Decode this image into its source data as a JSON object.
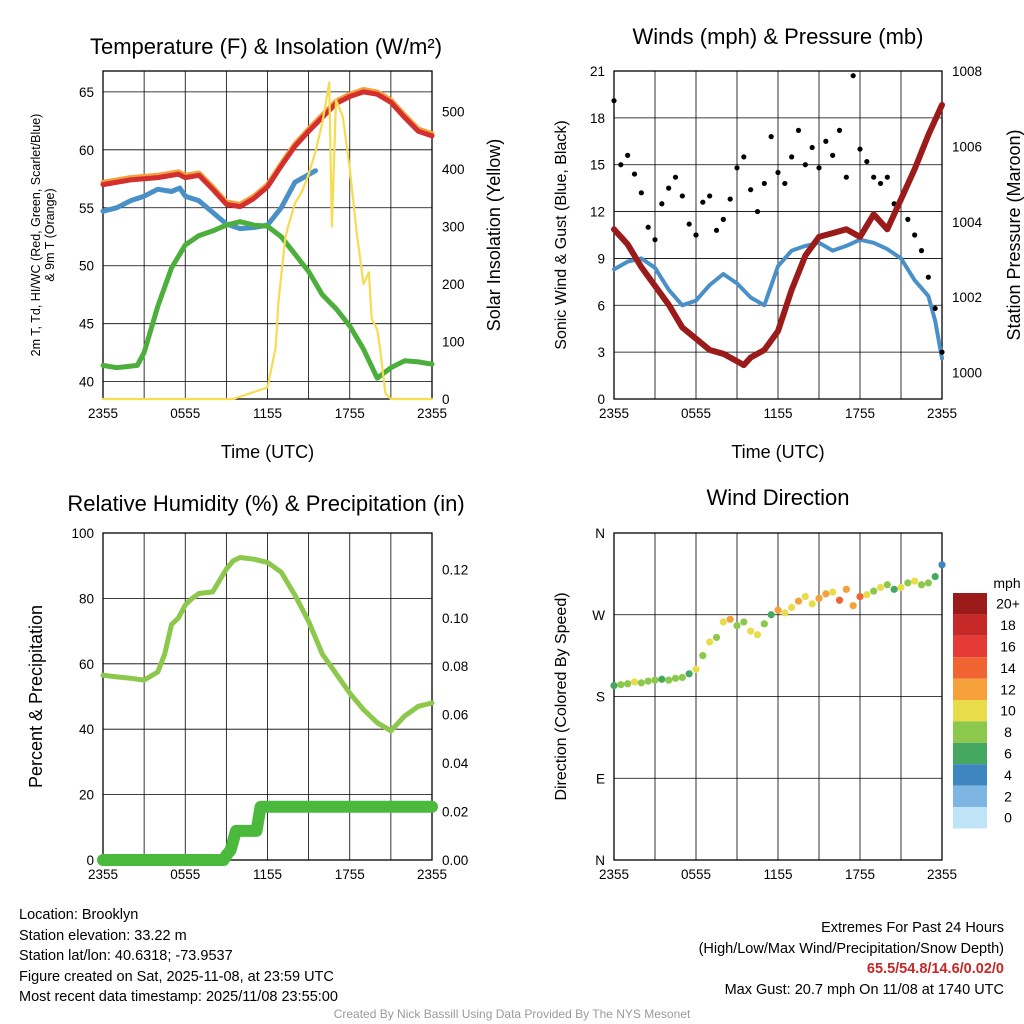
{
  "colors": {
    "temp_red": "#d32f2f",
    "temp_orange": "#f5a03a",
    "dew_green": "#4caf3c",
    "hi_scarlet": "#d32f2f",
    "wc_blue": "#4a90c8",
    "insolation": "#f5dc50",
    "wind_blue": "#4a9ad4",
    "gust_black": "#000000",
    "pressure_maroon": "#9b1b1b",
    "rh_green": "#8cc84b",
    "precip_green": "#4bba3c",
    "extreme_red": "#c62828"
  },
  "chart_data": [
    {
      "id": "temperature",
      "type": "line",
      "title": "Temperature (F) & Insolation (W/m²)",
      "xlabel": "Time (UTC)",
      "ylabel_lines": [
        "2m T, Td, HI/WC (Red, Green, Scarlet/Blue)",
        "& 9m T (Orange)"
      ],
      "y2label": "Solar Insolation (Yellow)",
      "x_ticks": [
        "2355",
        "0555",
        "1155",
        "1755",
        "2355"
      ],
      "x_range": [
        0,
        24
      ],
      "ylim": [
        38.5,
        66.8
      ],
      "y_ticks": [
        40,
        45,
        50,
        55,
        60,
        65
      ],
      "y2lim": [
        0,
        570
      ],
      "y2_ticks": [
        0,
        100,
        200,
        300,
        400,
        500
      ],
      "series": [
        {
          "name": "9m T",
          "axis": "left",
          "color": "orange",
          "x": [
            0,
            2,
            4,
            5.5,
            6,
            7,
            8,
            9,
            10,
            11,
            12,
            13,
            14,
            15,
            16,
            17,
            18,
            19,
            20,
            21,
            22,
            23,
            24
          ],
          "y": [
            57.2,
            57.6,
            57.8,
            58.1,
            57.8,
            58.0,
            56.8,
            55.5,
            55.3,
            56.0,
            57.0,
            58.8,
            60.5,
            61.8,
            63.0,
            64.2,
            64.8,
            65.2,
            65.0,
            64.3,
            63.0,
            61.8,
            61.4
          ]
        },
        {
          "name": "2m T",
          "axis": "left",
          "color": "red",
          "x": [
            0,
            2,
            4,
            5.5,
            6,
            7,
            8,
            9,
            10,
            11,
            12,
            13,
            14,
            15,
            16,
            17,
            18,
            19,
            20,
            21,
            22,
            23,
            24
          ],
          "y": [
            57.0,
            57.4,
            57.6,
            57.9,
            57.6,
            57.8,
            56.6,
            55.3,
            55.1,
            55.8,
            56.8,
            58.6,
            60.3,
            61.6,
            62.8,
            64.0,
            64.6,
            65.0,
            64.8,
            64.1,
            62.8,
            61.6,
            61.2
          ]
        },
        {
          "name": "Wind Chill",
          "axis": "left",
          "color": "blue",
          "x": [
            0,
            1,
            2,
            3,
            4,
            5,
            5.6,
            6,
            7,
            8,
            9,
            10,
            11,
            12,
            13,
            14,
            15.5
          ],
          "y": [
            54.7,
            55.0,
            55.6,
            56.0,
            56.6,
            56.4,
            56.7,
            56.0,
            55.6,
            54.6,
            53.6,
            53.2,
            53.3,
            53.5,
            55.0,
            57.2,
            58.2
          ]
        },
        {
          "name": "Dew Point",
          "axis": "left",
          "color": "green",
          "x": [
            0,
            1,
            2.5,
            3,
            4,
            5,
            6,
            7,
            8,
            9,
            10,
            11,
            12,
            13,
            14,
            15,
            16,
            17,
            18,
            19,
            20,
            21,
            22,
            23,
            24
          ],
          "y": [
            41.4,
            41.2,
            41.4,
            42.5,
            46.5,
            49.8,
            51.8,
            52.6,
            53.0,
            53.5,
            53.8,
            53.5,
            53.4,
            52.5,
            51.0,
            49.5,
            47.5,
            46.3,
            44.8,
            42.8,
            40.3,
            41.2,
            41.8,
            41.7,
            41.5
          ]
        },
        {
          "name": "Solar Insolation",
          "axis": "right",
          "color": "insolation",
          "x": [
            0,
            9.5,
            12,
            12.6,
            12.8,
            13.3,
            13.5,
            14,
            14.5,
            15,
            15.5,
            16,
            16.5,
            16.7,
            17,
            17.5,
            18,
            18.5,
            19,
            19.4,
            19.6,
            20,
            20.2,
            20.4,
            20.6,
            21,
            22,
            24
          ],
          "y": [
            0,
            0,
            20,
            90,
            170,
            280,
            300,
            340,
            360,
            390,
            430,
            480,
            550,
            300,
            520,
            490,
            400,
            290,
            200,
            220,
            140,
            120,
            90,
            50,
            10,
            0,
            0,
            0
          ]
        }
      ]
    },
    {
      "id": "winds",
      "type": "line",
      "title": "Winds (mph) & Pressure (mb)",
      "xlabel": "Time (UTC)",
      "ylabel": "Sonic Wind & Gust (Blue, Black)",
      "y2label": "Station Pressure (Maroon)",
      "x_ticks": [
        "2355",
        "0555",
        "1155",
        "1755",
        "2355"
      ],
      "x_range": [
        0,
        24
      ],
      "ylim": [
        0,
        21
      ],
      "y_ticks": [
        0,
        3,
        6,
        9,
        12,
        15,
        18,
        21
      ],
      "y2lim": [
        999.3,
        1008
      ],
      "y2_ticks": [
        1000,
        1002,
        1004,
        1006,
        1008
      ],
      "series": [
        {
          "name": "Sonic Wind",
          "axis": "left",
          "color": "blue",
          "x": [
            0,
            1,
            2,
            3,
            4,
            5,
            6,
            7,
            8,
            9,
            10,
            11,
            12,
            13,
            14,
            15,
            16,
            17,
            18,
            19,
            20,
            21,
            22,
            23,
            23.5,
            24
          ],
          "y": [
            8.3,
            8.8,
            9.0,
            8.4,
            7.0,
            6.0,
            6.3,
            7.3,
            8.0,
            7.4,
            6.5,
            6.0,
            8.5,
            9.5,
            9.8,
            10.0,
            9.5,
            9.8,
            10.2,
            10.0,
            9.6,
            9.0,
            7.6,
            6.6,
            5.0,
            2.6
          ]
        },
        {
          "name": "Gust",
          "axis": "left",
          "color": "black",
          "style": "dots",
          "x": [
            0,
            0.5,
            1,
            1.5,
            2,
            2.5,
            3,
            3.5,
            4,
            4.5,
            5,
            5.5,
            6,
            6.5,
            7,
            7.5,
            8,
            8.5,
            9,
            9.5,
            10,
            10.5,
            11,
            11.5,
            12,
            12.5,
            13,
            13.5,
            14,
            14.5,
            15,
            15.5,
            16,
            16.5,
            17,
            17.5,
            18,
            18.5,
            19,
            19.5,
            20,
            20.5,
            21,
            21.5,
            22,
            22.5,
            23,
            23.5,
            24
          ],
          "y": [
            19.1,
            15.0,
            15.6,
            14.4,
            13.2,
            11.0,
            10.2,
            12.5,
            13.5,
            14.2,
            13.0,
            11.2,
            10.5,
            12.6,
            13.0,
            10.8,
            11.5,
            12.8,
            14.8,
            15.5,
            13.4,
            12.0,
            13.8,
            16.8,
            14.5,
            13.8,
            15.5,
            17.2,
            15.0,
            16.1,
            14.8,
            16.5,
            15.6,
            17.2,
            14.2,
            20.7,
            16.0,
            15.2,
            14.2,
            13.8,
            14.2,
            12.5,
            12.8,
            11.5,
            10.5,
            9.5,
            7.8,
            5.8,
            3.0
          ]
        },
        {
          "name": "Station Pressure",
          "axis": "right",
          "color": "maroon",
          "x": [
            0,
            1,
            2,
            3,
            4,
            5,
            6,
            7,
            8,
            9,
            9.5,
            10,
            11,
            12,
            13,
            14,
            15,
            16,
            17,
            18,
            19,
            20,
            21,
            22,
            23,
            24
          ],
          "y": [
            1003.8,
            1003.4,
            1002.8,
            1002.3,
            1001.8,
            1001.2,
            1000.9,
            1000.6,
            1000.5,
            1000.3,
            1000.2,
            1000.4,
            1000.6,
            1001.1,
            1002.2,
            1003.1,
            1003.6,
            1003.7,
            1003.8,
            1003.6,
            1004.2,
            1003.8,
            1004.6,
            1005.4,
            1006.3,
            1007.1
          ]
        }
      ]
    },
    {
      "id": "humidity",
      "type": "line",
      "title": "Relative Humidity (%) & Precipitation (in)",
      "xlabel": "",
      "ylabel": "Percent & Precipitation",
      "x_ticks": [
        "2355",
        "0555",
        "1155",
        "1755",
        "2355"
      ],
      "x_range": [
        0,
        24
      ],
      "ylim": [
        0,
        100
      ],
      "y_ticks": [
        0,
        20,
        40,
        60,
        80,
        100
      ],
      "y2lim": [
        0,
        0.135
      ],
      "y2_ticks": [
        "0.00",
        "0.02",
        "0.04",
        "0.06",
        "0.08",
        "0.10",
        "0.12"
      ],
      "series": [
        {
          "name": "Relative Humidity",
          "axis": "left",
          "color": "rh",
          "x": [
            0,
            1,
            2,
            3,
            4,
            4.5,
            5,
            5.5,
            6,
            6.5,
            7,
            8,
            9,
            9.5,
            10,
            11,
            12,
            13,
            14,
            15,
            16,
            17,
            18,
            19,
            20,
            21,
            22,
            23,
            24
          ],
          "y": [
            56.5,
            56.0,
            55.6,
            55.0,
            57.5,
            63,
            72,
            74,
            78,
            80,
            81.5,
            82,
            89,
            91.5,
            92.5,
            92.0,
            91.0,
            88.0,
            81.0,
            73.0,
            63.0,
            57.0,
            51.0,
            46.0,
            42.0,
            39.5,
            44.0,
            47.0,
            48.0
          ]
        },
        {
          "name": "Precipitation",
          "axis": "right",
          "color": "precip",
          "style": "thick",
          "x": [
            0,
            8.8,
            9.0,
            9.3,
            9.5,
            9.7,
            11.2,
            11.5,
            24
          ],
          "y": [
            0.0,
            0.0,
            0.002,
            0.004,
            0.008,
            0.012,
            0.012,
            0.022,
            0.022
          ]
        }
      ]
    },
    {
      "id": "wind_direction",
      "type": "scatter",
      "title": "Wind Direction",
      "ylabel": "Direction (Colored By Speed)",
      "x_ticks": [
        "2355",
        "0555",
        "1155",
        "1755",
        "2355"
      ],
      "x_range": [
        0,
        24
      ],
      "ylim": [
        0,
        360
      ],
      "y_ticks": [
        "N",
        "E",
        "S",
        "W",
        "N"
      ],
      "colorbar_title": "mph",
      "colorbar_labels": [
        "20+",
        "18",
        "16",
        "14",
        "12",
        "10",
        "8",
        "6",
        "4",
        "2",
        "0"
      ],
      "colorbar_colors": [
        "#9b1b1b",
        "#c62828",
        "#e53935",
        "#f06432",
        "#f5a03a",
        "#e8dc4a",
        "#8cc84b",
        "#45a860",
        "#3f86c0",
        "#7db6e2",
        "#bfe3f7"
      ],
      "x": [
        0,
        0.5,
        1,
        1.5,
        2,
        2.5,
        3,
        3.5,
        4,
        4.5,
        5,
        5.5,
        6,
        6.5,
        7,
        7.5,
        8,
        8.5,
        9,
        9.5,
        10,
        10.5,
        11,
        11.5,
        12,
        12.5,
        13,
        13.5,
        14,
        14.5,
        15,
        15.5,
        16,
        16.5,
        17,
        17.5,
        18,
        18.5,
        19,
        19.5,
        20,
        20.5,
        21,
        21.5,
        22,
        22.5,
        23,
        23.5,
        24
      ],
      "y": [
        192,
        193,
        194,
        196,
        195,
        197,
        198,
        199,
        198,
        200,
        201,
        205,
        210,
        225,
        240,
        245,
        262,
        265,
        258,
        262,
        252,
        248,
        260,
        270,
        275,
        272,
        278,
        285,
        290,
        282,
        288,
        293,
        295,
        286,
        298,
        280,
        290,
        292,
        296,
        300,
        303,
        298,
        300,
        305,
        307,
        303,
        305,
        312,
        325
      ],
      "speed": [
        6,
        7,
        8,
        9,
        8,
        7,
        8,
        6,
        7,
        8,
        7,
        6,
        9,
        7,
        9,
        8,
        10,
        11,
        8,
        7,
        9,
        10,
        8,
        6,
        11,
        10,
        9,
        12,
        10,
        9,
        12,
        11,
        10,
        13,
        11,
        12,
        14,
        9,
        8,
        10,
        7,
        6,
        9,
        8,
        10,
        7,
        8,
        6,
        4
      ]
    }
  ],
  "info": {
    "location": "Location: Brooklyn",
    "elevation": "Station elevation: 33.22 m",
    "latlon": "Station lat/lon: 40.6318; -73.9537",
    "created": "Figure created on Sat, 2025-11-08, at 23:59 UTC",
    "recent": "Most recent data timestamp: 2025/11/08 23:55:00"
  },
  "extremes": {
    "heading": "Extremes For Past 24 Hours",
    "subheading": "(High/Low/Max Wind/Precipitation/Snow Depth)",
    "values": "65.5/54.8/14.6/0.02/0",
    "max_gust": "Max Gust: 20.7 mph On 11/08 at 1740 UTC"
  },
  "credit": "Created By Nick Bassill Using Data Provided By The NYS Mesonet"
}
